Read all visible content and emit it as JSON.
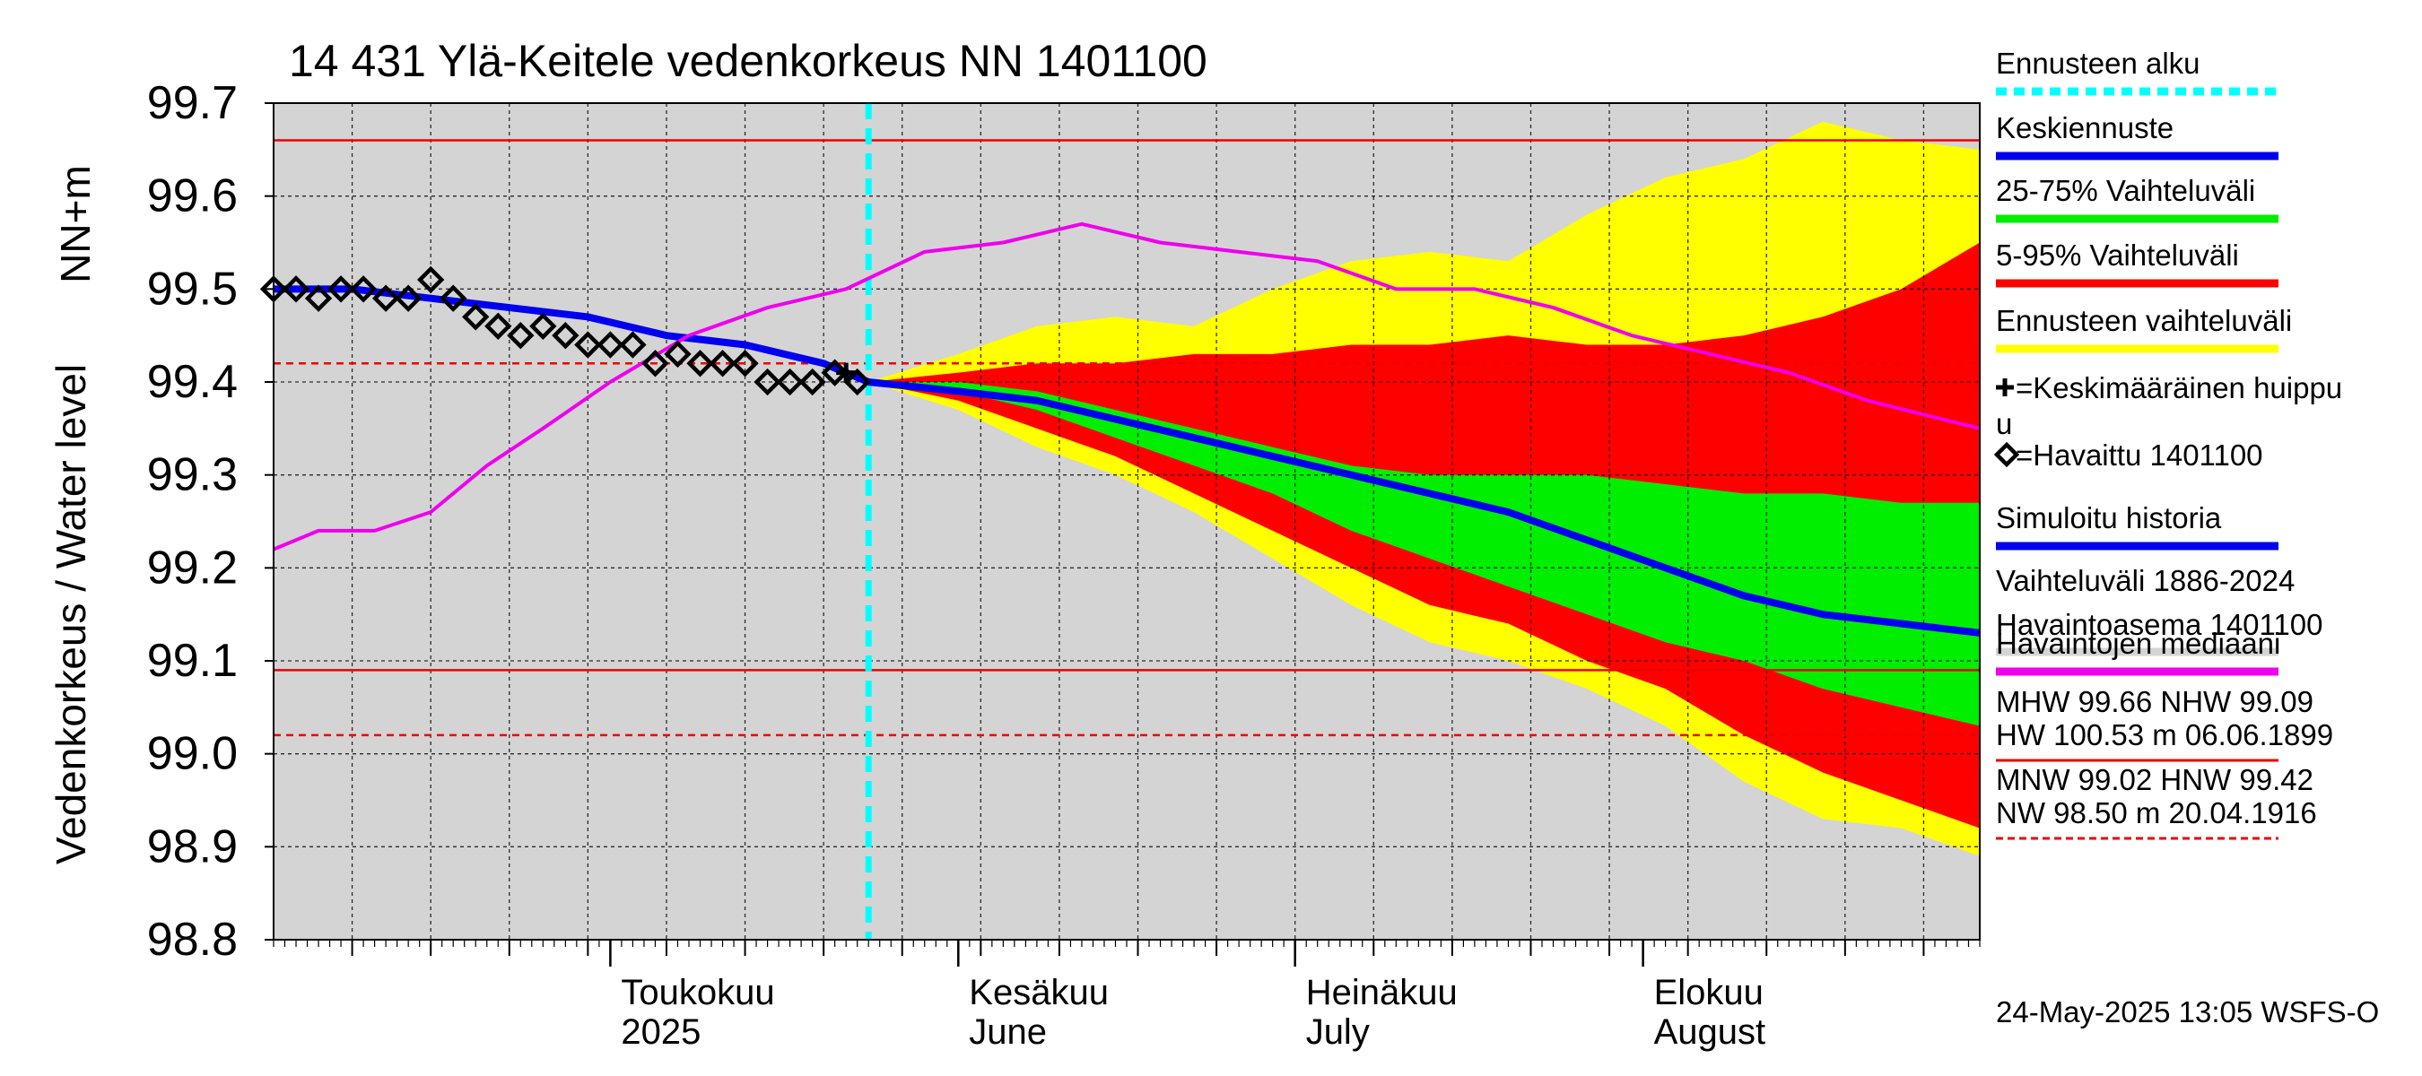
{
  "colors": {
    "plot_background": "#d4d4d4",
    "variation_range": "#ffff00",
    "range_5_95": "#ff0000",
    "range_25_75": "#00ee00",
    "mean_forecast": "#0000ee",
    "simulated_history": "#0000ee",
    "forecast_start": "#00ffff",
    "median": "#ee00ee",
    "threshold": "#ee0000"
  },
  "chart_data": {
    "type": "line",
    "title": "14 431 Ylä-Keitele vedenkorkeus NN 1401100",
    "ylabel_line1": "NN+m",
    "ylabel_line2": "Vedenkorkeus / Water level",
    "ylim": [
      98.8,
      99.7
    ],
    "yticks": [
      "99.7",
      "99.6",
      "99.5",
      "99.4",
      "99.3",
      "99.2",
      "99.1",
      "99.0",
      "98.9",
      "98.8"
    ],
    "xlim": [
      "2025-04-01",
      "2025-08-31"
    ],
    "xticks": [
      {
        "date": "2025-05-01",
        "label1": "Toukokuu",
        "label2": "2025"
      },
      {
        "date": "2025-06-01",
        "label1": "Kesäkuu",
        "label2": "June"
      },
      {
        "date": "2025-07-01",
        "label1": "Heinäkuu",
        "label2": "July"
      },
      {
        "date": "2025-08-01",
        "label1": "Elokuu",
        "label2": "August"
      }
    ],
    "forecast_start": "2025-05-24",
    "thresholds": [
      {
        "name": "MHW",
        "value": 99.66,
        "style": "solid"
      },
      {
        "name": "NHW",
        "value": 99.09,
        "style": "solid"
      },
      {
        "name": "MNW",
        "value": 99.02,
        "style": "dashed"
      },
      {
        "name": "HNW",
        "value": 99.42,
        "style": "dashed"
      }
    ],
    "series": [
      {
        "name": "Ennusteen vaihteluväli",
        "kind": "band",
        "x": [
          "2025-05-24",
          "2025-06-01",
          "2025-06-08",
          "2025-06-15",
          "2025-06-22",
          "2025-06-29",
          "2025-07-06",
          "2025-07-13",
          "2025-07-20",
          "2025-07-27",
          "2025-08-03",
          "2025-08-10",
          "2025-08-17",
          "2025-08-24",
          "2025-08-31"
        ],
        "upper": [
          99.4,
          99.43,
          99.46,
          99.47,
          99.46,
          99.5,
          99.53,
          99.54,
          99.53,
          99.58,
          99.62,
          99.64,
          99.68,
          99.66,
          99.65
        ],
        "lower": [
          99.4,
          99.37,
          99.33,
          99.3,
          99.26,
          99.21,
          99.16,
          99.12,
          99.1,
          99.07,
          99.03,
          98.97,
          98.93,
          98.92,
          98.89
        ]
      },
      {
        "name": "5-95% Vaihteluväli",
        "kind": "band",
        "x": [
          "2025-05-24",
          "2025-06-01",
          "2025-06-08",
          "2025-06-15",
          "2025-06-22",
          "2025-06-29",
          "2025-07-06",
          "2025-07-13",
          "2025-07-20",
          "2025-07-27",
          "2025-08-03",
          "2025-08-10",
          "2025-08-17",
          "2025-08-24",
          "2025-08-31"
        ],
        "upper": [
          99.4,
          99.41,
          99.42,
          99.42,
          99.43,
          99.43,
          99.44,
          99.44,
          99.45,
          99.44,
          99.44,
          99.45,
          99.47,
          99.5,
          99.55
        ],
        "lower": [
          99.4,
          99.38,
          99.35,
          99.32,
          99.28,
          99.24,
          99.2,
          99.16,
          99.14,
          99.1,
          99.07,
          99.02,
          98.98,
          98.95,
          98.92
        ]
      },
      {
        "name": "25-75% Vaihteluväli",
        "kind": "band",
        "x": [
          "2025-05-24",
          "2025-06-01",
          "2025-06-08",
          "2025-06-15",
          "2025-06-22",
          "2025-06-29",
          "2025-07-06",
          "2025-07-13",
          "2025-07-20",
          "2025-07-27",
          "2025-08-03",
          "2025-08-10",
          "2025-08-17",
          "2025-08-24",
          "2025-08-31"
        ],
        "upper": [
          99.4,
          99.4,
          99.39,
          99.37,
          99.35,
          99.33,
          99.31,
          99.3,
          99.3,
          99.3,
          99.29,
          99.28,
          99.28,
          99.27,
          99.27
        ],
        "lower": [
          99.4,
          99.39,
          99.37,
          99.34,
          99.31,
          99.28,
          99.24,
          99.21,
          99.18,
          99.15,
          99.12,
          99.1,
          99.07,
          99.05,
          99.03
        ]
      },
      {
        "name": "Keskiennuste",
        "kind": "line",
        "x": [
          "2025-05-24",
          "2025-06-01",
          "2025-06-08",
          "2025-06-15",
          "2025-06-22",
          "2025-06-29",
          "2025-07-06",
          "2025-07-13",
          "2025-07-20",
          "2025-07-27",
          "2025-08-03",
          "2025-08-10",
          "2025-08-17",
          "2025-08-24",
          "2025-08-31"
        ],
        "y": [
          99.4,
          99.39,
          99.38,
          99.36,
          99.34,
          99.32,
          99.3,
          99.28,
          99.26,
          99.23,
          99.2,
          99.17,
          99.15,
          99.14,
          99.13
        ]
      },
      {
        "name": "Simuloitu historia",
        "kind": "line",
        "x": [
          "2025-04-01",
          "2025-04-08",
          "2025-04-15",
          "2025-04-22",
          "2025-04-29",
          "2025-05-06",
          "2025-05-13",
          "2025-05-20",
          "2025-05-24"
        ],
        "y": [
          99.5,
          99.5,
          99.49,
          99.48,
          99.47,
          99.45,
          99.44,
          99.42,
          99.4
        ]
      },
      {
        "name": "Havaintojen mediaani",
        "kind": "line",
        "x": [
          "2025-04-01",
          "2025-04-05",
          "2025-04-10",
          "2025-04-15",
          "2025-04-20",
          "2025-04-25",
          "2025-05-01",
          "2025-05-08",
          "2025-05-15",
          "2025-05-22",
          "2025-05-29",
          "2025-06-05",
          "2025-06-12",
          "2025-06-19",
          "2025-06-26",
          "2025-07-03",
          "2025-07-10",
          "2025-07-17",
          "2025-07-24",
          "2025-07-31",
          "2025-08-07",
          "2025-08-14",
          "2025-08-21",
          "2025-08-31"
        ],
        "y": [
          99.22,
          99.24,
          99.24,
          99.26,
          99.31,
          99.35,
          99.4,
          99.45,
          99.48,
          99.5,
          99.54,
          99.55,
          99.57,
          99.55,
          99.54,
          99.53,
          99.5,
          99.5,
          99.48,
          99.45,
          99.43,
          99.41,
          99.38,
          99.35
        ]
      },
      {
        "name": "Havaittu 1401100",
        "kind": "points",
        "x": [
          "2025-04-01",
          "2025-04-03",
          "2025-04-05",
          "2025-04-07",
          "2025-04-09",
          "2025-04-11",
          "2025-04-13",
          "2025-04-15",
          "2025-04-17",
          "2025-04-19",
          "2025-04-21",
          "2025-04-23",
          "2025-04-25",
          "2025-04-27",
          "2025-04-29",
          "2025-05-01",
          "2025-05-03",
          "2025-05-05",
          "2025-05-07",
          "2025-05-09",
          "2025-05-11",
          "2025-05-13",
          "2025-05-15",
          "2025-05-17",
          "2025-05-19",
          "2025-05-21",
          "2025-05-23"
        ],
        "y": [
          99.5,
          99.5,
          99.49,
          99.5,
          99.5,
          99.49,
          99.49,
          99.51,
          99.49,
          99.47,
          99.46,
          99.45,
          99.46,
          99.45,
          99.44,
          99.44,
          99.44,
          99.42,
          99.43,
          99.42,
          99.42,
          99.42,
          99.4,
          99.4,
          99.4,
          99.41,
          99.4
        ]
      },
      {
        "name": "Keskimääräinen huippu",
        "kind": "marker",
        "x": [
          "2025-05-22"
        ],
        "y": [
          99.41
        ]
      }
    ],
    "legend": {
      "placement": "right",
      "items": [
        {
          "label": "Ennusteen alku",
          "color": "#00ffff",
          "style": "dashed"
        },
        {
          "label": "Keskiennuste",
          "color": "#0000ee",
          "style": "line"
        },
        {
          "label": "25-75% Vaihteluväli",
          "color": "#00ee00",
          "style": "line"
        },
        {
          "label": "5-95% Vaihteluväli",
          "color": "#ff0000",
          "style": "line"
        },
        {
          "label": "Ennusteen vaihteluväli",
          "color": "#ffff00",
          "style": "line"
        },
        {
          "label": "=Keskimääräinen huippu",
          "label_wrap": "u",
          "style": "plus"
        },
        {
          "label": "=Havaittu 1401100",
          "style": "diamond"
        },
        {
          "label": "Simuloitu historia",
          "color": "#0000ee",
          "style": "line"
        },
        {
          "label": "Vaihteluväli 1886-2024",
          "label2": " Havaintoasema 1401100",
          "color": "#d4d4d4",
          "style": "line"
        },
        {
          "label": "Havaintojen mediaani",
          "color": "#ee00ee",
          "style": "line"
        }
      ],
      "stats": [
        {
          "line1": "MHW  99.66 NHW  99.09",
          "line2": "HW 100.53 m 06.06.1899",
          "style": "solid"
        },
        {
          "line1": "MNW  99.02 HNW  99.42",
          "line2": "NW  98.50 m 20.04.1916",
          "style": "dashed"
        }
      ]
    },
    "footer": "24-May-2025 13:05 WSFS-O"
  }
}
